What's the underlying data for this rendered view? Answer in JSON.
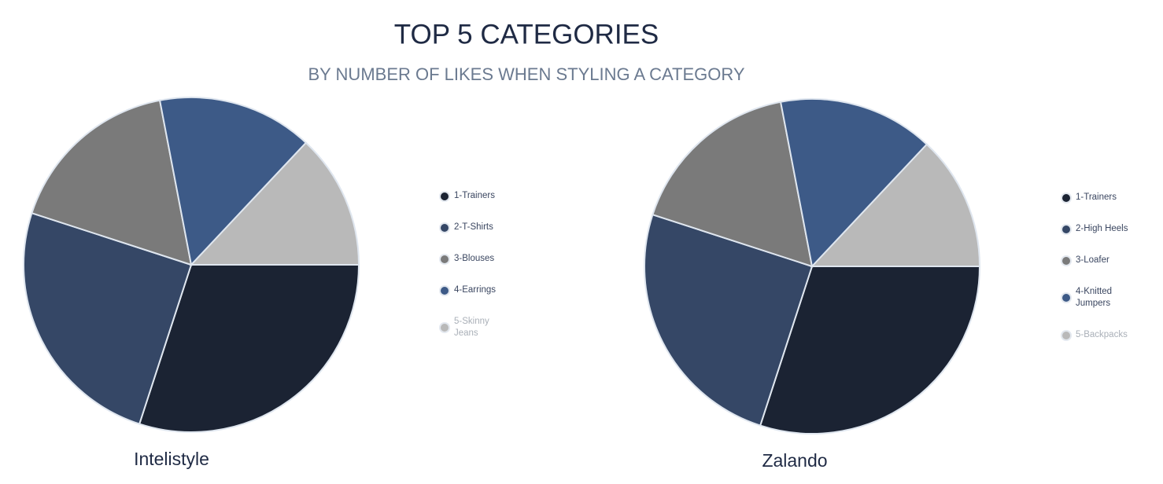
{
  "header": {
    "title": "TOP 5 CATEGORIES",
    "subtitle": "BY NUMBER OF LIKES WHEN STYLING A CATEGORY"
  },
  "chart_data": [
    {
      "type": "pie",
      "title": "Intelistyle",
      "categories": [
        "1-Trainers",
        "2-T-Shirts",
        "3-Blouses",
        "4-Earrings",
        "5-Skinny Jeans"
      ],
      "values": [
        30,
        25,
        17,
        15,
        13
      ],
      "colors": [
        "#1b2333",
        "#354766",
        "#7a7a7a",
        "#3d5a87",
        "#b9b9b9"
      ]
    },
    {
      "type": "pie",
      "title": "Zalando",
      "categories": [
        "1-Trainers",
        "2-High Heels",
        "3-Loafer",
        "4-Knitted Jumpers",
        "5-Backpacks"
      ],
      "values": [
        30,
        25,
        17,
        15,
        13
      ],
      "colors": [
        "#1b2333",
        "#354766",
        "#7a7a7a",
        "#3d5a87",
        "#b9b9b9"
      ]
    }
  ]
}
